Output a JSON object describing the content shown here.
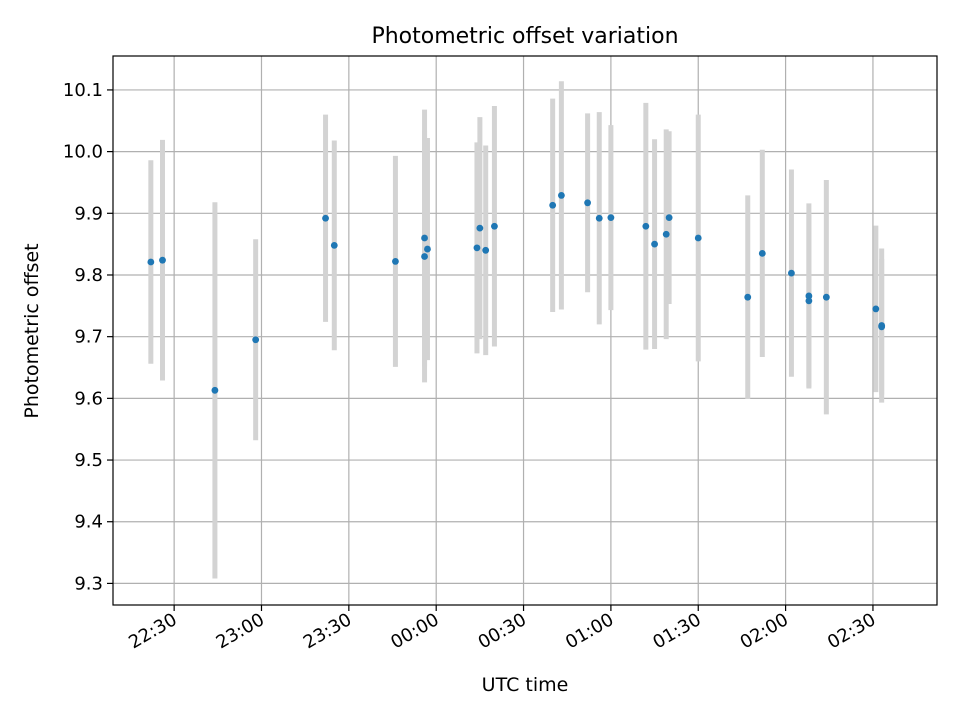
{
  "chart_data": {
    "type": "scatter",
    "title": "Photometric offset variation",
    "xlabel": "UTC time",
    "ylabel": "Photometric offset",
    "x_unit": "UTC time (HH:MM)",
    "xlim": [
      "22:09",
      "02:52"
    ],
    "ylim": [
      9.265,
      10.155
    ],
    "grid": true,
    "xticks": [
      "22:30",
      "23:00",
      "23:30",
      "00:00",
      "00:30",
      "01:00",
      "01:30",
      "02:00",
      "02:30"
    ],
    "yticks": [
      "9.3",
      "9.4",
      "9.5",
      "9.6",
      "9.7",
      "9.8",
      "9.9",
      "10.0",
      "10.1"
    ],
    "colors": {
      "point": "#1f77b4",
      "errorbar": "#d3d3d3",
      "grid": "#b0b0b0"
    },
    "points": [
      {
        "x": "22:22",
        "y": 9.821,
        "err": 0.165
      },
      {
        "x": "22:26",
        "y": 9.824,
        "err": 0.195
      },
      {
        "x": "22:44",
        "y": 9.613,
        "err": 0.305
      },
      {
        "x": "22:58",
        "y": 9.695,
        "err": 0.163
      },
      {
        "x": "23:22",
        "y": 9.892,
        "err": 0.168
      },
      {
        "x": "23:25",
        "y": 9.848,
        "err": 0.17
      },
      {
        "x": "23:46",
        "y": 9.822,
        "err": 0.171
      },
      {
        "x": "23:56",
        "y": 9.83,
        "err": 0.204
      },
      {
        "x": "23:56",
        "y": 9.86,
        "err": 0.208
      },
      {
        "x": "23:57",
        "y": 9.842,
        "err": 0.18
      },
      {
        "x": "00:14",
        "y": 9.844,
        "err": 0.171
      },
      {
        "x": "00:15",
        "y": 9.876,
        "err": 0.18
      },
      {
        "x": "00:17",
        "y": 9.84,
        "err": 0.17
      },
      {
        "x": "00:20",
        "y": 9.879,
        "err": 0.195
      },
      {
        "x": "00:40",
        "y": 9.913,
        "err": 0.173
      },
      {
        "x": "00:43",
        "y": 9.929,
        "err": 0.185
      },
      {
        "x": "00:52",
        "y": 9.917,
        "err": 0.145
      },
      {
        "x": "00:56",
        "y": 9.892,
        "err": 0.172
      },
      {
        "x": "01:00",
        "y": 9.893,
        "err": 0.15
      },
      {
        "x": "01:12",
        "y": 9.879,
        "err": 0.2
      },
      {
        "x": "01:15",
        "y": 9.85,
        "err": 0.17
      },
      {
        "x": "01:19",
        "y": 9.866,
        "err": 0.17
      },
      {
        "x": "01:20",
        "y": 9.893,
        "err": 0.14
      },
      {
        "x": "01:30",
        "y": 9.86,
        "err": 0.2
      },
      {
        "x": "01:47",
        "y": 9.764,
        "err": 0.165
      },
      {
        "x": "01:52",
        "y": 9.835,
        "err": 0.168
      },
      {
        "x": "02:02",
        "y": 9.803,
        "err": 0.168
      },
      {
        "x": "02:08",
        "y": 9.766,
        "err": 0.15
      },
      {
        "x": "02:08",
        "y": 9.758,
        "err": 0.14
      },
      {
        "x": "02:14",
        "y": 9.764,
        "err": 0.19
      },
      {
        "x": "02:31",
        "y": 9.745,
        "err": 0.135
      },
      {
        "x": "02:33",
        "y": 9.718,
        "err": 0.125
      },
      {
        "x": "02:33",
        "y": 9.716,
        "err": 0.11
      }
    ]
  }
}
